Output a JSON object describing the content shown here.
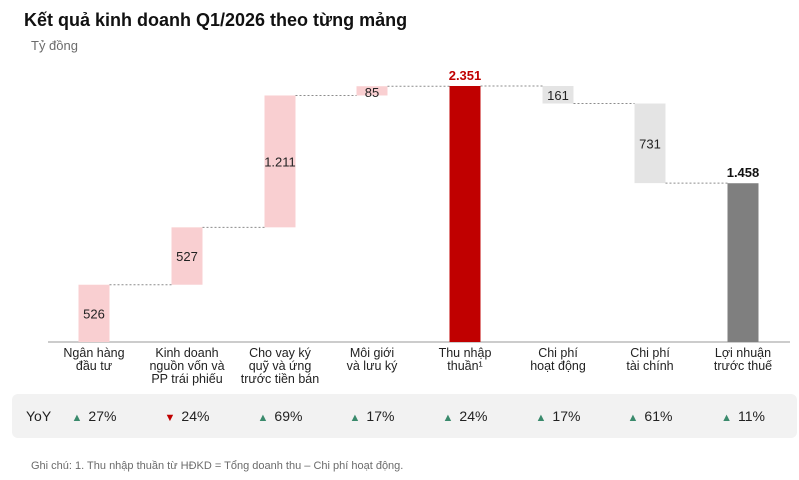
{
  "title": "Kết quả kinh doanh Q1/2026 theo từng mảng",
  "unit": "Tỷ đồng",
  "chart_data": {
    "type": "bar",
    "subtype": "waterfall",
    "categories": [
      [
        "Ngân hàng",
        "đầu tư"
      ],
      [
        "Kinh doanh",
        "nguồn vốn và",
        "PP trái phiếu"
      ],
      [
        "Cho vay ký",
        "quỹ và ứng",
        "trước tiền bán"
      ],
      [
        "Môi giới",
        "và lưu ký"
      ],
      [
        "Thu nhập",
        "thuần¹"
      ],
      [
        "Chi phí",
        "hoạt động"
      ],
      [
        "Chi phí",
        "tài chính"
      ],
      [
        "Lợi nhuận",
        "trước thuế"
      ]
    ],
    "values": [
      526,
      527,
      1211,
      85,
      2351,
      -161,
      -731,
      1458
    ],
    "value_labels": [
      "526",
      "527",
      "1.211",
      "85",
      "2.351",
      "161",
      "731",
      "1.458"
    ],
    "bar_kinds": [
      "increase",
      "increase",
      "increase",
      "increase",
      "total",
      "decrease",
      "decrease",
      "total"
    ],
    "colors": {
      "increase": "#f9cfd1",
      "total_revenue": "#c00000",
      "decrease": "#e4e4e4",
      "total_profit": "#7f7f7f",
      "revenue_label": "#c00000",
      "profit_label": "#111111"
    },
    "ylim": [
      0,
      2351
    ],
    "grid": false,
    "legend": "none"
  },
  "yoy": {
    "label": "YoY",
    "items": [
      {
        "direction": "up",
        "value": "27%"
      },
      {
        "direction": "down",
        "value": "24%"
      },
      {
        "direction": "up",
        "value": "69%"
      },
      {
        "direction": "up",
        "value": "17%"
      },
      {
        "direction": "up",
        "value": "24%"
      },
      {
        "direction": "up",
        "value": "17%"
      },
      {
        "direction": "up",
        "value": "61%"
      },
      {
        "direction": "up",
        "value": "11%"
      }
    ],
    "up_color": "#3a8a6c",
    "down_color": "#c00000"
  },
  "note": "Ghi chú: 1. Thu nhập thuần từ HĐKD = Tổng doanh thu – Chi phí hoạt động."
}
